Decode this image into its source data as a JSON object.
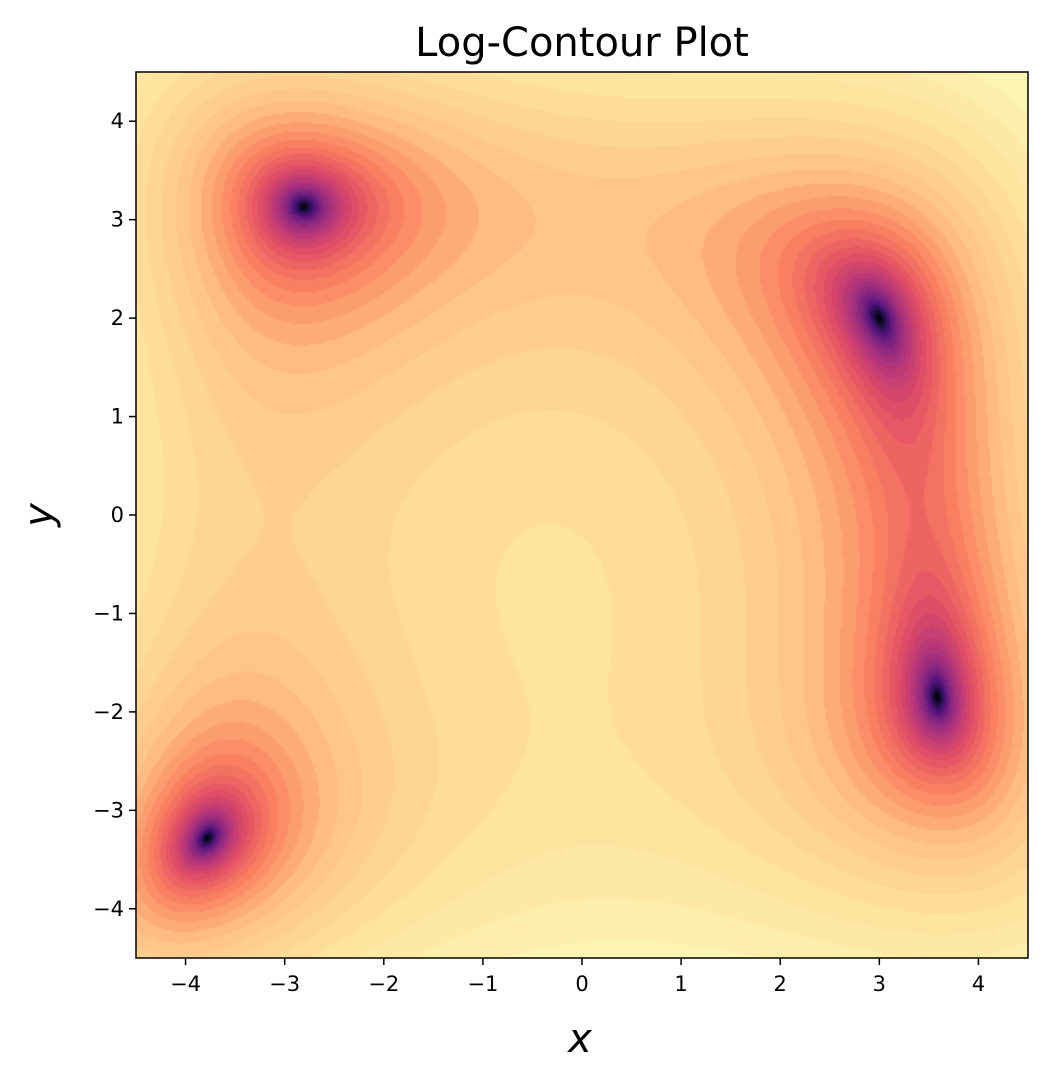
{
  "chart_data": {
    "type": "contour",
    "title": "Log-Contour Plot",
    "xlabel": "x",
    "ylabel": "y",
    "xlim": [
      -4.5,
      4.5
    ],
    "ylim": [
      -4.5,
      4.5
    ],
    "xticks": [
      -4,
      -3,
      -2,
      -1,
      0,
      1,
      2,
      3,
      4
    ],
    "yticks": [
      -4,
      -3,
      -2,
      -1,
      0,
      1,
      2,
      3,
      4
    ],
    "xtick_labels": [
      "−4",
      "−3",
      "−2",
      "−1",
      "0",
      "1",
      "2",
      "3",
      "4"
    ],
    "ytick_labels": [
      "−4",
      "−3",
      "−2",
      "−1",
      "0",
      "1",
      "2",
      "3",
      "4"
    ],
    "colormap": "magma",
    "grid": false,
    "function": "log((x^2 + y - 11)^2 + (x + y^2 - 7)^2)",
    "minima": [
      {
        "x": 3.0,
        "y": 2.0
      },
      {
        "x": -2.805,
        "y": 3.131
      },
      {
        "x": -3.779,
        "y": -3.283
      },
      {
        "x": 3.584,
        "y": -1.848
      }
    ],
    "colors": {
      "low": "#000004",
      "mid": "#f7735c",
      "high": "#fcfdbf",
      "background": "#ffffff"
    }
  }
}
